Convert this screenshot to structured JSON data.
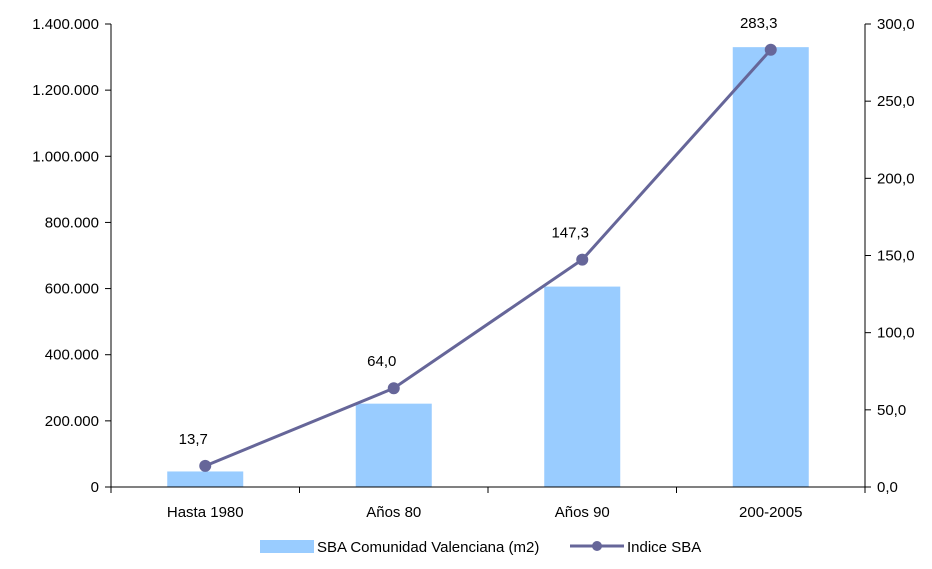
{
  "chart_data": {
    "type": "bar",
    "categories": [
      "Hasta 1980",
      "Años 80",
      "Años 90",
      "200-2005"
    ],
    "series": [
      {
        "name": "SBA Comunidad Valenciana (m2)",
        "type": "bar",
        "axis": "left",
        "color": "#99ccff",
        "values": [
          47000,
          252000,
          606000,
          1330000
        ]
      },
      {
        "name": "Indice SBA",
        "type": "line",
        "axis": "right",
        "color": "#666699",
        "values": [
          13.7,
          64.0,
          147.3,
          283.3
        ],
        "labels": [
          "13,7",
          "64,0",
          "147,3",
          "283,3"
        ]
      }
    ],
    "y_left": {
      "lim": [
        0,
        1400000
      ],
      "ticks": [
        0,
        200000,
        400000,
        600000,
        800000,
        1000000,
        1200000,
        1400000
      ],
      "tick_labels": [
        "0",
        "200.000",
        "400.000",
        "600.000",
        "800.000",
        "1.000.000",
        "1.200.000",
        "1.400.000"
      ]
    },
    "y_right": {
      "lim": [
        0,
        300
      ],
      "ticks": [
        0,
        50,
        100,
        150,
        200,
        250,
        300
      ],
      "tick_labels": [
        "0,0",
        "50,0",
        "100,0",
        "150,0",
        "200,0",
        "250,0",
        "300,0"
      ]
    },
    "grid": false,
    "legend": "bottom"
  }
}
